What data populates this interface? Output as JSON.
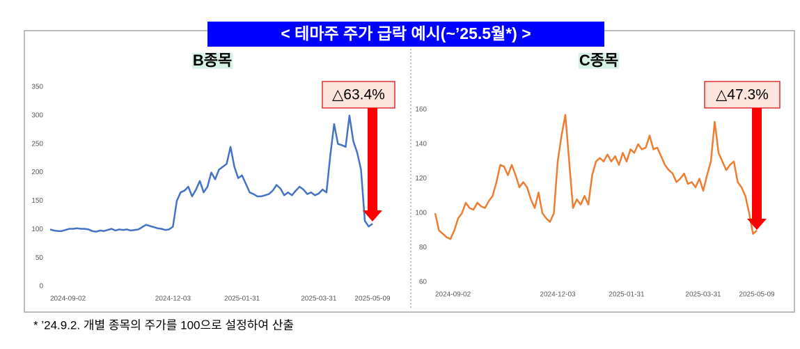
{
  "title": "< 테마주 주가 급락 예시(~’25.5월*) >",
  "footnote": "* ’24.9.2. 개별 종목의 주가를 100으로 설정하여 산출",
  "chart_data": [
    {
      "type": "line",
      "title": "B종목",
      "annotation": "△63.4%",
      "color": "#4472c4",
      "categories": [
        "2024-09-02",
        null,
        null,
        null,
        null,
        null,
        null,
        null,
        null,
        null,
        null,
        null,
        null,
        null,
        null,
        null,
        null,
        null,
        null,
        null,
        null,
        null,
        null,
        null,
        null,
        null,
        null,
        null,
        null,
        null,
        null,
        null,
        "2024-12-03",
        null,
        null,
        null,
        null,
        null,
        null,
        null,
        null,
        null,
        null,
        null,
        null,
        null,
        null,
        null,
        null,
        null,
        "2025-01-31",
        null,
        null,
        null,
        null,
        null,
        null,
        null,
        null,
        null,
        null,
        null,
        null,
        null,
        null,
        null,
        null,
        null,
        null,
        null,
        "2025-03-31",
        null,
        null,
        null,
        null,
        null,
        null,
        null,
        null,
        null,
        null,
        null,
        null,
        null,
        "2025-05-09"
      ],
      "values": [
        100,
        98,
        97,
        97,
        99,
        101,
        101,
        102,
        101,
        101,
        100,
        97,
        96,
        98,
        97,
        99,
        101,
        98,
        100,
        99,
        100,
        98,
        99,
        100,
        104,
        108,
        106,
        104,
        102,
        101,
        99,
        100,
        105,
        150,
        165,
        168,
        175,
        158,
        170,
        185,
        165,
        175,
        200,
        188,
        205,
        210,
        215,
        245,
        210,
        190,
        195,
        180,
        165,
        162,
        158,
        158,
        160,
        162,
        168,
        178,
        172,
        160,
        165,
        160,
        168,
        175,
        170,
        162,
        165,
        160,
        163,
        170,
        165,
        230,
        285,
        250,
        248,
        245,
        300,
        255,
        235,
        205,
        115,
        105,
        110
      ],
      "ylim": [
        0,
        350
      ],
      "yticks": [
        0,
        50,
        100,
        150,
        200,
        250,
        300,
        350
      ]
    },
    {
      "type": "line",
      "title": "C종목",
      "annotation": "△47.3%",
      "color": "#ed7d31",
      "categories": [
        "2024-09-02",
        null,
        null,
        null,
        null,
        null,
        null,
        null,
        null,
        null,
        null,
        null,
        null,
        null,
        null,
        null,
        null,
        null,
        null,
        null,
        null,
        null,
        null,
        null,
        null,
        null,
        null,
        null,
        null,
        null,
        null,
        null,
        "2024-12-03",
        null,
        null,
        null,
        null,
        null,
        null,
        null,
        null,
        null,
        null,
        null,
        null,
        null,
        null,
        null,
        null,
        null,
        "2025-01-31",
        null,
        null,
        null,
        null,
        null,
        null,
        null,
        null,
        null,
        null,
        null,
        null,
        null,
        null,
        null,
        null,
        null,
        null,
        null,
        "2025-03-31",
        null,
        null,
        null,
        null,
        null,
        null,
        null,
        null,
        null,
        null,
        null,
        null,
        null,
        "2025-05-09"
      ],
      "values": [
        100,
        90,
        88,
        86,
        85,
        90,
        97,
        100,
        106,
        103,
        102,
        106,
        104,
        103,
        107,
        110,
        118,
        128,
        127,
        122,
        128,
        122,
        115,
        118,
        115,
        108,
        103,
        112,
        100,
        97,
        95,
        100,
        130,
        145,
        157,
        130,
        103,
        108,
        105,
        110,
        105,
        122,
        130,
        132,
        130,
        134,
        130,
        133,
        128,
        135,
        130,
        137,
        135,
        140,
        137,
        138,
        145,
        137,
        138,
        133,
        128,
        125,
        123,
        118,
        120,
        123,
        117,
        118,
        115,
        120,
        113,
        122,
        130,
        153,
        135,
        130,
        125,
        128,
        130,
        118,
        115,
        110,
        100,
        88,
        90
      ],
      "ylim": [
        60,
        180
      ],
      "yticks": [
        60,
        80,
        100,
        120,
        140,
        160
      ]
    }
  ]
}
